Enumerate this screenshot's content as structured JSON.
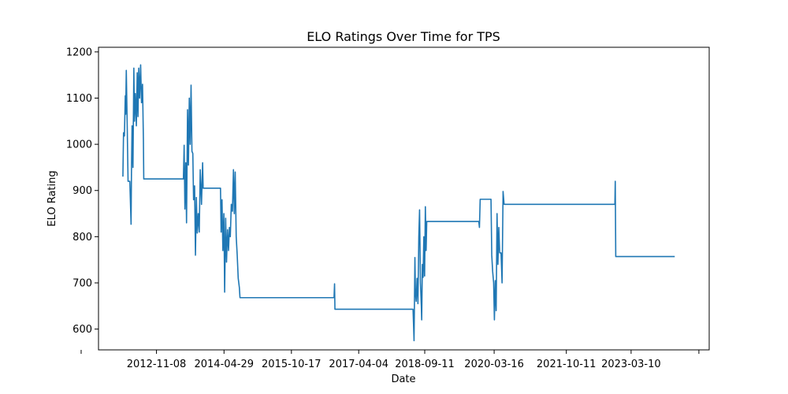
{
  "chart_data": {
    "type": "line",
    "title": "ELO Ratings Over Time for TPS",
    "xlabel": "Date",
    "ylabel": "ELO Rating",
    "grid": false,
    "legend": "none",
    "x_range": [
      "2011-08-05",
      "2024-11-20"
    ],
    "ylim": [
      555,
      1210
    ],
    "x_ticks": [
      "2011-03-20",
      "2012-11-08",
      "2014-04-29",
      "2015-10-17",
      "2017-04-04",
      "2018-09-11",
      "2020-03-16",
      "2021-10-11",
      "2023-03-10",
      "2024-08-30"
    ],
    "x_tick_labels": [
      "",
      "2012-11-08",
      "2014-04-29",
      "2015-10-17",
      "2017-04-04",
      "2018-09-11",
      "2020-03-16",
      "2021-10-11",
      "2023-03-10",
      ""
    ],
    "y_ticks": [
      600,
      700,
      800,
      900,
      1000,
      1100,
      1200
    ],
    "series": [
      {
        "color": "#1f77b4",
        "points": [
          [
            "2012-02-15",
            930
          ],
          [
            "2012-02-20",
            1025
          ],
          [
            "2012-02-27",
            1018
          ],
          [
            "2012-03-05",
            1105
          ],
          [
            "2012-03-08",
            1065
          ],
          [
            "2012-03-13",
            1160
          ],
          [
            "2012-03-20",
            1045
          ],
          [
            "2012-03-27",
            920
          ],
          [
            "2012-04-10",
            920
          ],
          [
            "2012-04-20",
            827
          ],
          [
            "2012-04-23",
            935
          ],
          [
            "2012-04-28",
            1040
          ],
          [
            "2012-05-05",
            950
          ],
          [
            "2012-05-12",
            1165
          ],
          [
            "2012-05-17",
            1050
          ],
          [
            "2012-05-24",
            1110
          ],
          [
            "2012-06-01",
            1040
          ],
          [
            "2012-06-08",
            1155
          ],
          [
            "2012-06-14",
            1060
          ],
          [
            "2012-06-20",
            1165
          ],
          [
            "2012-06-27",
            1100
          ],
          [
            "2012-07-05",
            1172
          ],
          [
            "2012-07-12",
            1090
          ],
          [
            "2012-07-20",
            1130
          ],
          [
            "2012-07-27",
            1010
          ],
          [
            "2012-07-30",
            925
          ],
          [
            "2013-06-10",
            925
          ],
          [
            "2013-06-16",
            998
          ],
          [
            "2013-06-22",
            860
          ],
          [
            "2013-06-29",
            960
          ],
          [
            "2013-07-05",
            830
          ],
          [
            "2013-07-13",
            1075
          ],
          [
            "2013-07-20",
            955
          ],
          [
            "2013-07-27",
            1100
          ],
          [
            "2013-08-03",
            1000
          ],
          [
            "2013-08-10",
            1128
          ],
          [
            "2013-08-17",
            985
          ],
          [
            "2013-08-24",
            980
          ],
          [
            "2013-08-30",
            880
          ],
          [
            "2013-09-07",
            910
          ],
          [
            "2013-09-14",
            760
          ],
          [
            "2013-09-21",
            885
          ],
          [
            "2013-09-28",
            808
          ],
          [
            "2013-10-06",
            850
          ],
          [
            "2013-10-14",
            810
          ],
          [
            "2013-10-22",
            945
          ],
          [
            "2013-11-01",
            870
          ],
          [
            "2013-11-10",
            960
          ],
          [
            "2013-11-14",
            905
          ],
          [
            "2014-04-01",
            905
          ],
          [
            "2014-04-06",
            810
          ],
          [
            "2014-04-13",
            880
          ],
          [
            "2014-04-20",
            770
          ],
          [
            "2014-04-28",
            850
          ],
          [
            "2014-05-04",
            680
          ],
          [
            "2014-05-12",
            840
          ],
          [
            "2014-05-19",
            745
          ],
          [
            "2014-05-27",
            815
          ],
          [
            "2014-06-04",
            770
          ],
          [
            "2014-06-11",
            820
          ],
          [
            "2014-06-18",
            800
          ],
          [
            "2014-06-26",
            870
          ],
          [
            "2014-07-05",
            855
          ],
          [
            "2014-07-13",
            945
          ],
          [
            "2014-07-20",
            850
          ],
          [
            "2014-07-27",
            940
          ],
          [
            "2014-08-04",
            800
          ],
          [
            "2014-08-12",
            760
          ],
          [
            "2014-08-20",
            710
          ],
          [
            "2014-08-29",
            690
          ],
          [
            "2014-09-03",
            668
          ],
          [
            "2016-09-20",
            668
          ],
          [
            "2016-09-24",
            698
          ],
          [
            "2016-09-27",
            643
          ],
          [
            "2018-06-10",
            643
          ],
          [
            "2018-06-14",
            610
          ],
          [
            "2018-06-18",
            575
          ],
          [
            "2018-06-21",
            650
          ],
          [
            "2018-06-25",
            755
          ],
          [
            "2018-06-29",
            680
          ],
          [
            "2018-07-05",
            660
          ],
          [
            "2018-07-12",
            710
          ],
          [
            "2018-07-19",
            655
          ],
          [
            "2018-07-26",
            800
          ],
          [
            "2018-08-01",
            858
          ],
          [
            "2018-08-08",
            700
          ],
          [
            "2018-08-15",
            650
          ],
          [
            "2018-08-18",
            620
          ],
          [
            "2018-08-23",
            740
          ],
          [
            "2018-08-29",
            712
          ],
          [
            "2018-09-04",
            800
          ],
          [
            "2018-09-10",
            715
          ],
          [
            "2018-09-16",
            865
          ],
          [
            "2018-09-22",
            770
          ],
          [
            "2018-09-27",
            833
          ],
          [
            "2019-11-15",
            833
          ],
          [
            "2019-11-20",
            820
          ],
          [
            "2019-11-26",
            881
          ],
          [
            "2020-02-20",
            881
          ],
          [
            "2020-02-26",
            760
          ],
          [
            "2020-03-04",
            725
          ],
          [
            "2020-03-12",
            700
          ],
          [
            "2020-03-18",
            620
          ],
          [
            "2020-03-25",
            705
          ],
          [
            "2020-04-01",
            640
          ],
          [
            "2020-04-08",
            850
          ],
          [
            "2020-04-15",
            740
          ],
          [
            "2020-04-22",
            820
          ],
          [
            "2020-04-29",
            765
          ],
          [
            "2020-05-10",
            765
          ],
          [
            "2020-05-18",
            700
          ],
          [
            "2020-05-26",
            898
          ],
          [
            "2020-06-03",
            870
          ],
          [
            "2022-11-01",
            870
          ],
          [
            "2022-11-04",
            920
          ],
          [
            "2022-11-08",
            757
          ],
          [
            "2024-02-20",
            757
          ]
        ]
      }
    ]
  }
}
